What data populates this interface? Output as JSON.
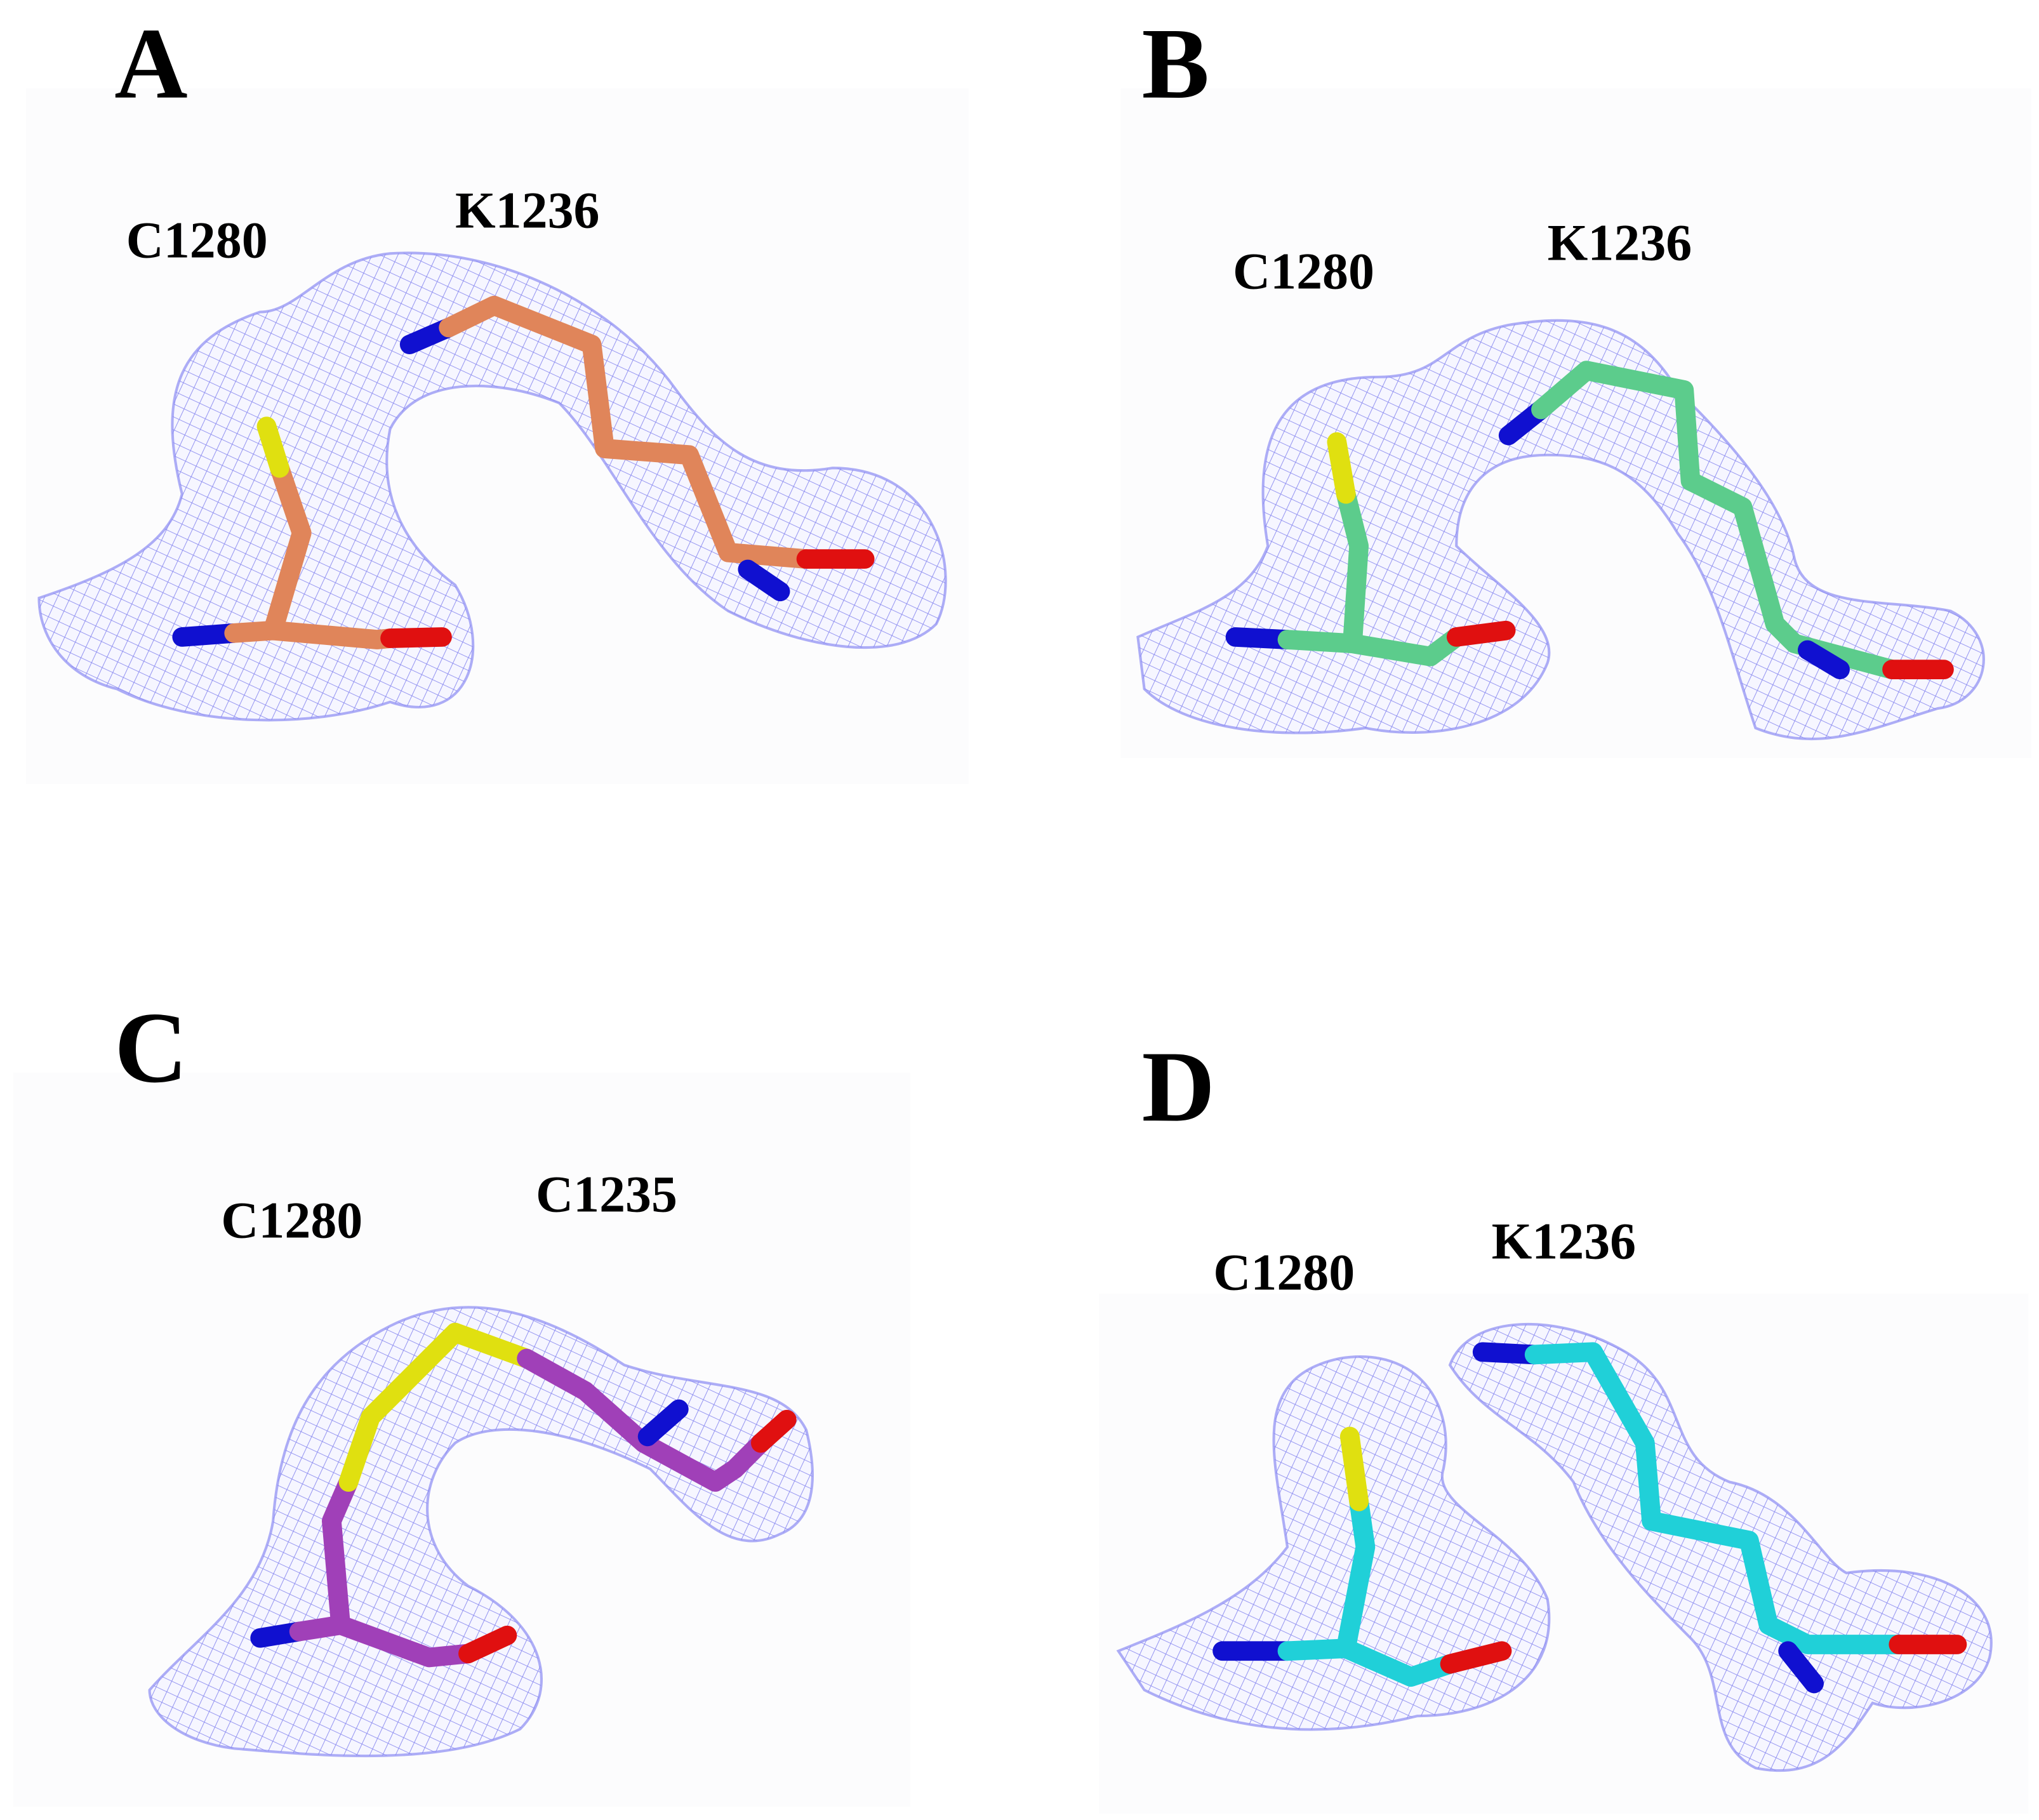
{
  "panels": [
    {
      "label": "A",
      "residues": [
        "C1280",
        "K1236"
      ]
    },
    {
      "label": "B",
      "residues": [
        "C1280",
        "K1236"
      ]
    },
    {
      "label": "C",
      "residues": [
        "C1280",
        "C1235"
      ]
    },
    {
      "label": "D",
      "residues": [
        "C1280",
        "K1236"
      ]
    }
  ]
}
